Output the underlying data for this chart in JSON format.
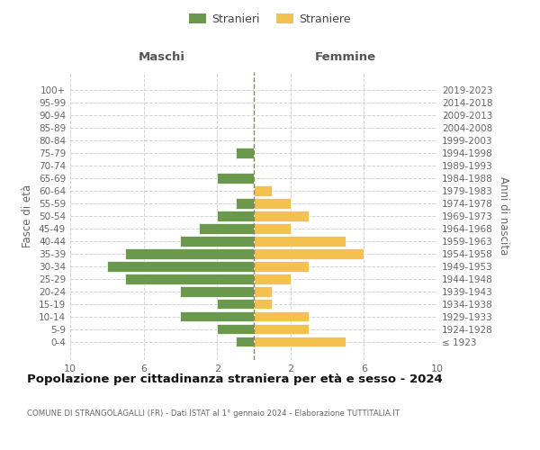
{
  "age_groups": [
    "100+",
    "95-99",
    "90-94",
    "85-89",
    "80-84",
    "75-79",
    "70-74",
    "65-69",
    "60-64",
    "55-59",
    "50-54",
    "45-49",
    "40-44",
    "35-39",
    "30-34",
    "25-29",
    "20-24",
    "15-19",
    "10-14",
    "5-9",
    "0-4"
  ],
  "birth_years": [
    "≤ 1923",
    "1924-1928",
    "1929-1933",
    "1934-1938",
    "1939-1943",
    "1944-1948",
    "1949-1953",
    "1954-1958",
    "1959-1963",
    "1964-1968",
    "1969-1973",
    "1974-1978",
    "1979-1983",
    "1984-1988",
    "1989-1993",
    "1994-1998",
    "1999-2003",
    "2004-2008",
    "2009-2013",
    "2014-2018",
    "2019-2023"
  ],
  "males": [
    0,
    0,
    0,
    0,
    0,
    1,
    0,
    2,
    0,
    1,
    2,
    3,
    4,
    7,
    8,
    7,
    4,
    2,
    4,
    2,
    1
  ],
  "females": [
    0,
    0,
    0,
    0,
    0,
    0,
    0,
    0,
    1,
    2,
    3,
    2,
    5,
    6,
    3,
    2,
    1,
    1,
    3,
    3,
    5
  ],
  "male_color": "#6a994e",
  "female_color": "#f4c14f",
  "center_line_color": "#888855",
  "background_color": "#ffffff",
  "grid_color": "#cccccc",
  "xlim": 10,
  "title": "Popolazione per cittadinanza straniera per età e sesso - 2024",
  "subtitle": "COMUNE DI STRANGOLAGALLI (FR) - Dati ISTAT al 1° gennaio 2024 - Elaborazione TUTTITALIA.IT",
  "ylabel_left": "Fasce di età",
  "ylabel_right": "Anni di nascita",
  "xlabel_left": "Maschi",
  "xlabel_right": "Femmine",
  "legend_males": "Stranieri",
  "legend_females": "Straniere"
}
